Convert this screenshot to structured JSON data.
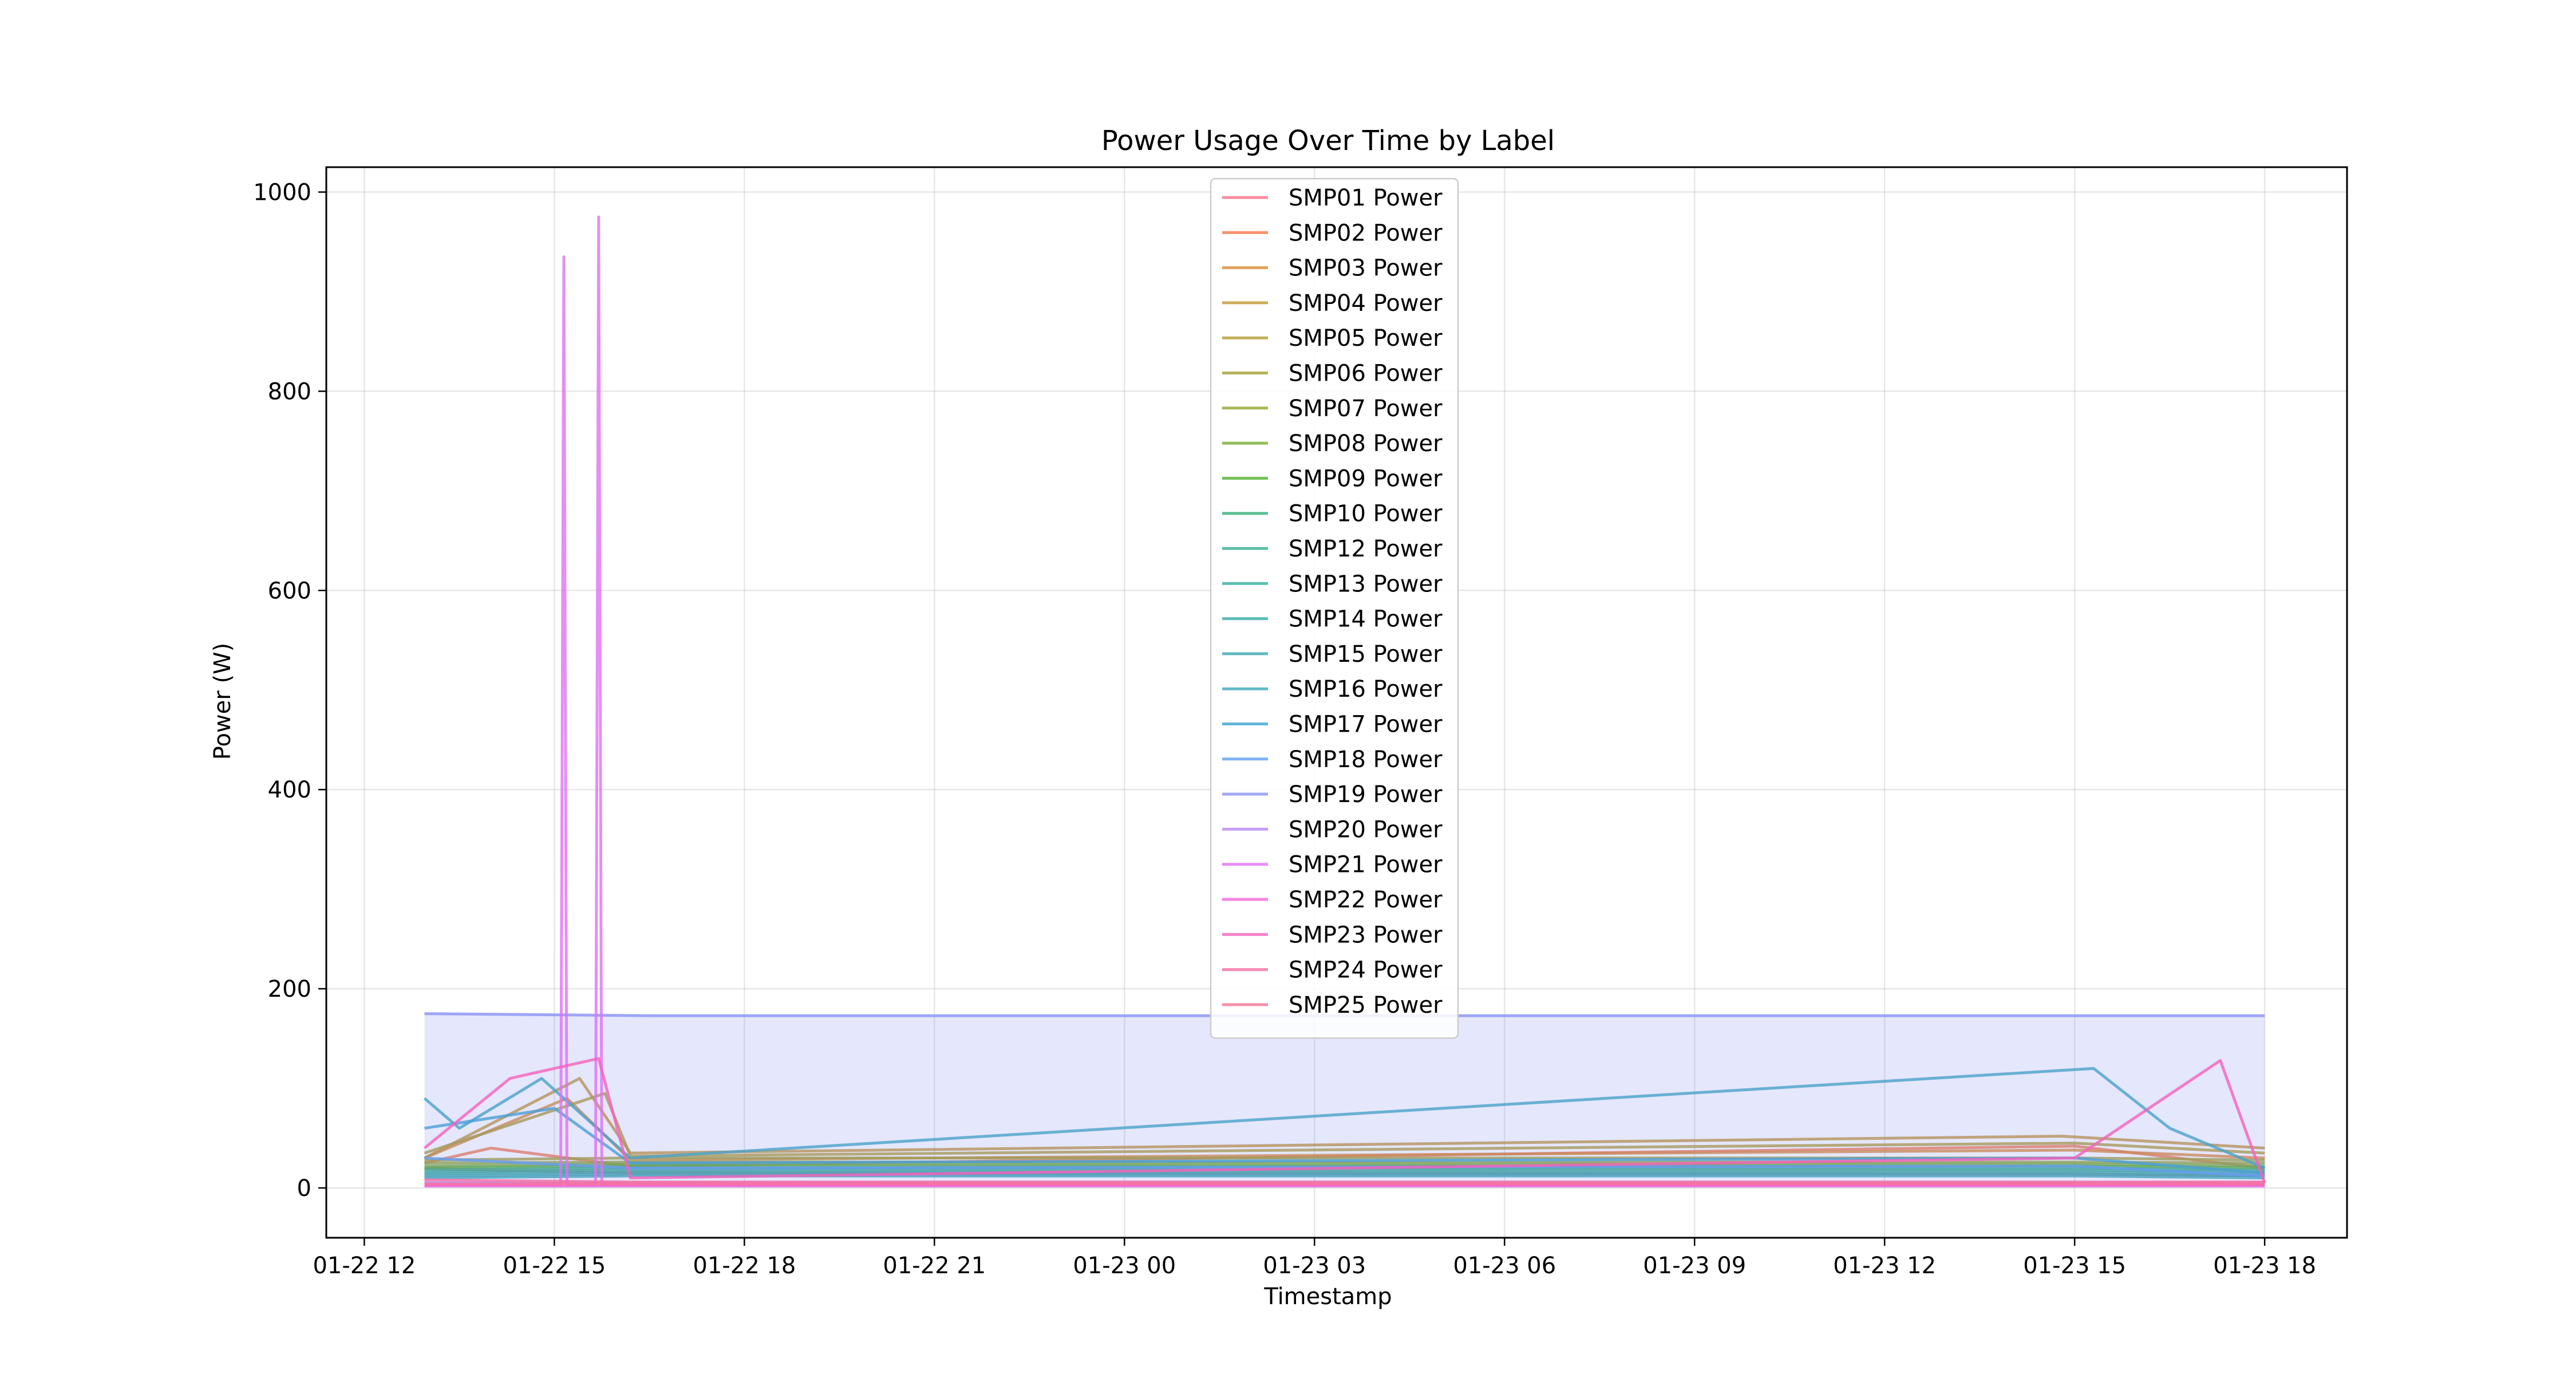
{
  "chart_data": {
    "type": "line",
    "title": "Power Usage Over Time by Label",
    "xlabel": "Timestamp",
    "ylabel": "Power (W)",
    "x_ticks": [
      {
        "value": 12,
        "label": "01-22 12"
      },
      {
        "value": 15,
        "label": "01-22 15"
      },
      {
        "value": 18,
        "label": "01-22 18"
      },
      {
        "value": 21,
        "label": "01-22 21"
      },
      {
        "value": 24,
        "label": "01-23 00"
      },
      {
        "value": 27,
        "label": "01-23 03"
      },
      {
        "value": 30,
        "label": "01-23 06"
      },
      {
        "value": 33,
        "label": "01-23 09"
      },
      {
        "value": 36,
        "label": "01-23 12"
      },
      {
        "value": 39,
        "label": "01-23 15"
      },
      {
        "value": 42,
        "label": "01-23 18"
      }
    ],
    "y_ticks": [
      0,
      200,
      400,
      600,
      800,
      1000
    ],
    "xlim": [
      "01-22 11:24",
      "01-23 19:18"
    ],
    "ylim": [
      -50,
      1025
    ],
    "grid": true,
    "legend_position": "top-center",
    "series": [
      {
        "name": "SMP01 Power",
        "color": "#f77189",
        "values": [
          [
            12.95,
            20
          ],
          [
            13.8,
            18
          ],
          [
            16.2,
            15
          ],
          [
            39.0,
            14
          ],
          [
            42.0,
            12
          ]
        ]
      },
      {
        "name": "SMP02 Power",
        "color": "#f2774a",
        "values": [
          [
            12.95,
            25
          ],
          [
            14.0,
            40
          ],
          [
            16.2,
            22
          ],
          [
            39.0,
            42
          ],
          [
            42.0,
            20
          ]
        ]
      },
      {
        "name": "SMP03 Power",
        "color": "#dc8932",
        "values": [
          [
            12.95,
            30
          ],
          [
            15.2,
            90
          ],
          [
            16.2,
            28
          ],
          [
            39.0,
            38
          ],
          [
            42.0,
            30
          ]
        ]
      },
      {
        "name": "SMP04 Power",
        "color": "#c39532",
        "values": [
          [
            12.95,
            30
          ],
          [
            15.4,
            110
          ],
          [
            16.2,
            35
          ],
          [
            38.8,
            52
          ],
          [
            42.0,
            40
          ]
        ]
      },
      {
        "name": "SMP05 Power",
        "color": "#b19c31",
        "values": [
          [
            12.95,
            35
          ],
          [
            15.8,
            95
          ],
          [
            16.2,
            32
          ],
          [
            39.0,
            45
          ],
          [
            42.0,
            35
          ]
        ]
      },
      {
        "name": "SMP06 Power",
        "color": "#a2a031",
        "values": [
          [
            12.95,
            28
          ],
          [
            16.2,
            30
          ],
          [
            39.0,
            30
          ],
          [
            42.0,
            28
          ]
        ]
      },
      {
        "name": "SMP07 Power",
        "color": "#91a531",
        "values": [
          [
            12.95,
            25
          ],
          [
            16.2,
            26
          ],
          [
            39.0,
            26
          ],
          [
            42.0,
            25
          ]
        ]
      },
      {
        "name": "SMP08 Power",
        "color": "#77ac31",
        "values": [
          [
            12.95,
            22
          ],
          [
            16.2,
            24
          ],
          [
            39.0,
            24
          ],
          [
            42.0,
            22
          ]
        ]
      },
      {
        "name": "SMP09 Power",
        "color": "#4fb031",
        "values": [
          [
            12.95,
            20
          ],
          [
            16.2,
            22
          ],
          [
            39.0,
            22
          ],
          [
            42.0,
            20
          ]
        ]
      },
      {
        "name": "SMP10 Power",
        "color": "#33b07a",
        "values": [
          [
            12.95,
            18
          ],
          [
            16.2,
            20
          ],
          [
            39.0,
            20
          ],
          [
            42.0,
            18
          ]
        ]
      },
      {
        "name": "SMP12 Power",
        "color": "#35ad8f",
        "values": [
          [
            12.95,
            16
          ],
          [
            16.2,
            18
          ],
          [
            39.0,
            18
          ],
          [
            42.0,
            16
          ]
        ]
      },
      {
        "name": "SMP13 Power",
        "color": "#36ab9c",
        "values": [
          [
            12.95,
            14
          ],
          [
            16.2,
            16
          ],
          [
            39.0,
            16
          ],
          [
            42.0,
            14
          ]
        ]
      },
      {
        "name": "SMP14 Power",
        "color": "#37aaa6",
        "values": [
          [
            12.95,
            12
          ],
          [
            16.2,
            14
          ],
          [
            39.0,
            14
          ],
          [
            42.0,
            12
          ]
        ]
      },
      {
        "name": "SMP15 Power",
        "color": "#38a8b0",
        "values": [
          [
            12.95,
            10
          ],
          [
            16.2,
            12
          ],
          [
            39.0,
            12
          ],
          [
            42.0,
            10
          ]
        ]
      },
      {
        "name": "SMP16 Power",
        "color": "#39a7bc",
        "values": [
          [
            12.95,
            90
          ],
          [
            13.5,
            60
          ],
          [
            14.8,
            110
          ],
          [
            16.2,
            30
          ],
          [
            39.3,
            120
          ],
          [
            40.5,
            60
          ],
          [
            42.0,
            20
          ]
        ]
      },
      {
        "name": "SMP17 Power",
        "color": "#3ba3d0",
        "values": [
          [
            12.95,
            60
          ],
          [
            15.0,
            80
          ],
          [
            16.2,
            25
          ],
          [
            39.0,
            30
          ],
          [
            42.0,
            15
          ]
        ]
      },
      {
        "name": "SMP18 Power",
        "color": "#5e9ff0",
        "values": [
          [
            12.95,
            30
          ],
          [
            16.2,
            20
          ],
          [
            39.0,
            22
          ],
          [
            42.0,
            12
          ]
        ]
      },
      {
        "name": "SMP19 Power",
        "color": "#8a92f4",
        "values": [
          [
            12.95,
            175
          ],
          [
            16.5,
            173
          ],
          [
            27.0,
            173
          ],
          [
            39.0,
            173
          ],
          [
            42.0,
            173
          ]
        ]
      },
      {
        "name": "SMP20 Power",
        "color": "#b587f4",
        "values": [
          [
            12.95,
            5
          ],
          [
            16.2,
            5
          ],
          [
            39.0,
            5
          ],
          [
            42.0,
            5
          ]
        ]
      },
      {
        "name": "SMP21 Power",
        "color": "#e071f4",
        "values": [
          [
            12.95,
            3
          ],
          [
            15.1,
            3
          ],
          [
            15.15,
            935
          ],
          [
            15.2,
            3
          ],
          [
            15.65,
            3
          ],
          [
            15.7,
            975
          ],
          [
            15.75,
            3
          ],
          [
            16.2,
            3
          ],
          [
            39.0,
            3
          ],
          [
            42.0,
            3
          ]
        ]
      },
      {
        "name": "SMP22 Power",
        "color": "#f464d9",
        "values": [
          [
            12.95,
            2
          ],
          [
            16.2,
            2
          ],
          [
            39.0,
            2
          ],
          [
            42.0,
            2
          ]
        ]
      },
      {
        "name": "SMP23 Power",
        "color": "#f561bd",
        "values": [
          [
            12.95,
            40
          ],
          [
            14.3,
            110
          ],
          [
            15.7,
            130
          ],
          [
            16.2,
            10
          ],
          [
            39.0,
            30
          ],
          [
            41.3,
            128
          ],
          [
            42.0,
            5
          ]
        ]
      },
      {
        "name": "SMP24 Power",
        "color": "#f66ca3",
        "values": [
          [
            12.95,
            8
          ],
          [
            16.2,
            6
          ],
          [
            39.0,
            6
          ],
          [
            42.0,
            6
          ]
        ]
      },
      {
        "name": "SMP25 Power",
        "color": "#f77295",
        "values": [
          [
            12.95,
            4
          ],
          [
            16.2,
            4
          ],
          [
            39.0,
            4
          ],
          [
            42.0,
            4
          ]
        ]
      }
    ]
  }
}
